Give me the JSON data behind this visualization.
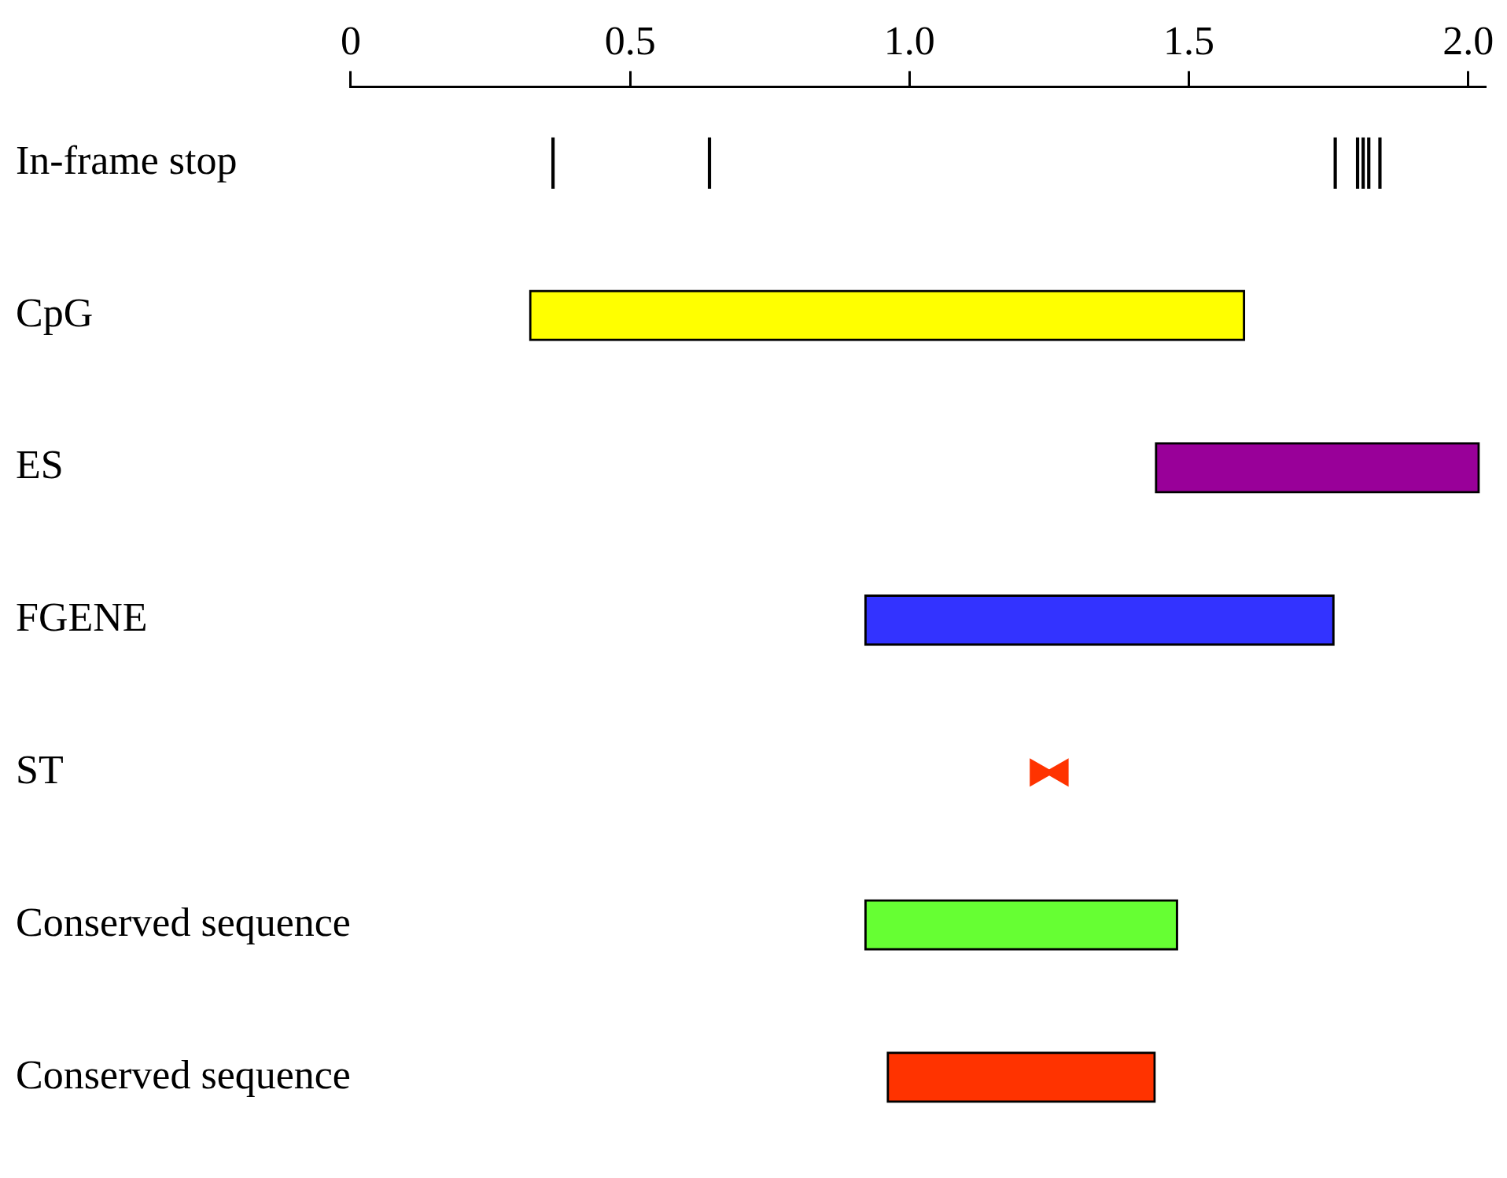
{
  "chart_data": {
    "type": "bar",
    "orientation": "horizontal",
    "categories": [
      "In-frame stop",
      "CpG",
      "ES",
      "FGENE",
      "ST",
      "Conserved sequence",
      "Conserved sequence"
    ],
    "series": [
      {
        "colors": [
          "#000000",
          "#ffff00",
          "#990099",
          "#3333ff",
          "#000000",
          "#66ff33",
          "#ff3300"
        ],
        "values": [
          null,
          1.28,
          0.58,
          0.84,
          null,
          0.56,
          0.48
        ],
        "base": [
          null,
          0.32,
          1.44,
          0.92,
          null,
          0.92,
          0.96
        ]
      },
      {
        "color": "#000000",
        "values": [
          0.004,
          null,
          null,
          null,
          null,
          null,
          null
        ],
        "base": [
          0.36,
          null,
          null,
          null,
          null,
          null,
          null
        ]
      },
      {
        "color": "#000000",
        "values": [
          0.004,
          null,
          null,
          null,
          null,
          null,
          null
        ],
        "base": [
          0.64,
          null,
          null,
          null,
          null,
          null,
          null
        ]
      },
      {
        "color": "#000000",
        "values": [
          0.004,
          null,
          null,
          null,
          null,
          null,
          null
        ],
        "base": [
          1.76,
          null,
          null,
          null,
          null,
          null,
          null
        ]
      },
      {
        "color": "#000000",
        "values": [
          0.004,
          null,
          null,
          null,
          null,
          null,
          null
        ],
        "base": [
          1.8,
          null,
          null,
          null,
          null,
          null,
          null
        ]
      },
      {
        "color": "#000000",
        "values": [
          0.004,
          null,
          null,
          null,
          null,
          null,
          null
        ],
        "base": [
          1.81,
          null,
          null,
          null,
          null,
          null,
          null
        ]
      },
      {
        "color": "#000000",
        "values": [
          0.004,
          null,
          null,
          null,
          null,
          null,
          null
        ],
        "base": [
          1.82,
          null,
          null,
          null,
          null,
          null,
          null
        ]
      },
      {
        "color": "#000000",
        "values": [
          0.004,
          null,
          null,
          null,
          null,
          null,
          null
        ],
        "base": [
          1.84,
          null,
          null,
          null,
          null,
          null,
          null
        ]
      },
      {
        "type": "scatter",
        "color": "#ff3300",
        "marker": "triangle",
        "values": [
          null,
          null,
          null,
          null,
          1.23,
          null,
          null
        ]
      },
      {
        "type": "scatter",
        "color": "#ff3300",
        "marker": "triangle",
        "values": [
          null,
          null,
          null,
          null,
          1.27,
          null,
          null
        ]
      }
    ],
    "xlim": [
      0,
      2.03
    ],
    "xticks": [
      0,
      0.5,
      {
        "value": 1,
        "label": "1.0"
      },
      1.5,
      {
        "value": 2,
        "label": "2.0"
      }
    ],
    "grid": false,
    "legend": false
  }
}
